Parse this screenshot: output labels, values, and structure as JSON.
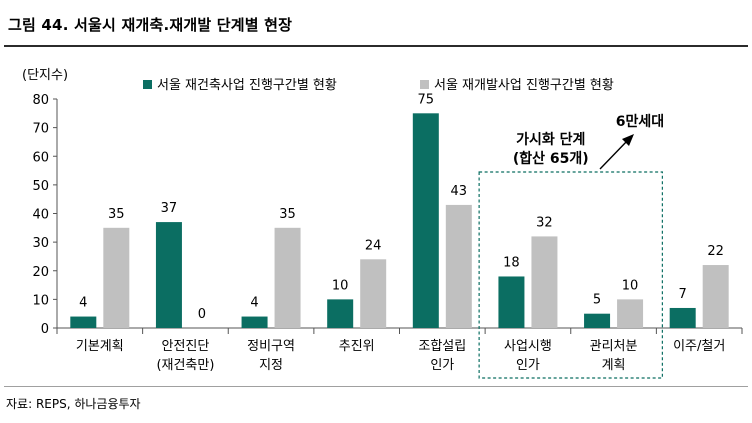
{
  "title": "그림 44. 서울시 재개축.재개발   단계별 현장",
  "source": "자료: REPS, 하나금융투자",
  "colors": {
    "series1": "#0b6e62",
    "series2": "#c0c0c0",
    "highlight_box": "#0b6e62",
    "text": "#000000"
  },
  "chart_data": {
    "type": "bar",
    "ylabel": "(단지수)",
    "xlabel": "",
    "ylim": [
      0,
      80
    ],
    "yticks": [
      0,
      10,
      20,
      30,
      40,
      50,
      60,
      70,
      80
    ],
    "grid": false,
    "legend": "top",
    "categories": [
      [
        "기본계획"
      ],
      [
        "안전진단",
        "(재건축만)"
      ],
      [
        "정비구역",
        "지정"
      ],
      [
        "추진위"
      ],
      [
        "조합설립",
        "인가"
      ],
      [
        "사업시행",
        "인가"
      ],
      [
        "관리처분",
        "계획"
      ],
      [
        "이주/철거"
      ]
    ],
    "series": [
      {
        "name": "서울 재건축사업 진행구간별 현황",
        "values": [
          4,
          37,
          4,
          10,
          75,
          18,
          5,
          7
        ]
      },
      {
        "name": "서울 재개발사업 진행구간별 현황",
        "values": [
          35,
          0,
          35,
          24,
          43,
          32,
          10,
          22
        ]
      }
    ],
    "annotations": {
      "box_label": [
        "가시화 단계",
        "(합산 65개)"
      ],
      "arrow_label": "6만세대"
    }
  }
}
